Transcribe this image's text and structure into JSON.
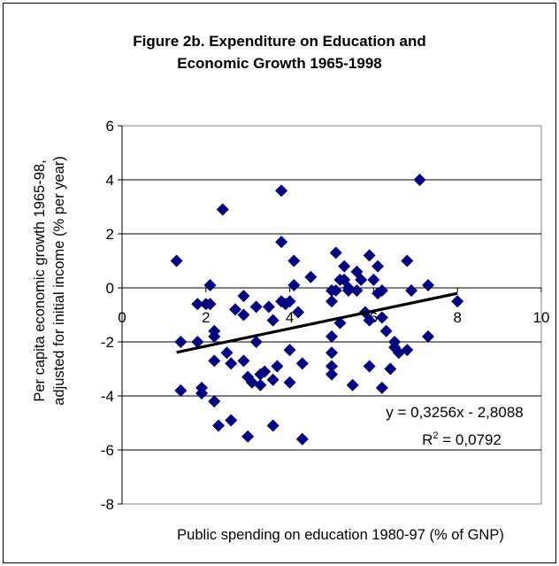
{
  "figure": {
    "title_line1": "Figure 2b. Expenditure on Education and",
    "title_line2": "Economic Growth 1965-1998"
  },
  "chart_data": {
    "type": "scatter",
    "xlabel": "Public spending on education 1980-97 (% of GNP)",
    "ylabel_line1": "Per capita economic growth 1965-98,",
    "ylabel_line2": "adjusted for initial income (% per year)",
    "xlim": [
      0,
      10
    ],
    "ylim": [
      -8,
      6
    ],
    "xticks": [
      0,
      2,
      4,
      6,
      8,
      10
    ],
    "yticks": [
      6,
      4,
      2,
      0,
      -2,
      -4,
      -6,
      -8
    ],
    "grid": "horizontal",
    "marker_color": "#000080",
    "trendline": {
      "x_range": [
        1.3,
        8.0
      ],
      "slope": 0.3256,
      "intercept": -2.8088,
      "equation": "y = 0,3256x - 2,8088",
      "r2_prefix": "R",
      "r2_sup": "2",
      "r2_value": " = 0,0792"
    },
    "points": [
      [
        1.3,
        1.0
      ],
      [
        1.4,
        -2.0
      ],
      [
        1.4,
        -3.8
      ],
      [
        1.8,
        -0.6
      ],
      [
        1.8,
        -2.0
      ],
      [
        1.9,
        -3.7
      ],
      [
        1.9,
        -3.9
      ],
      [
        2.0,
        -0.6
      ],
      [
        2.1,
        -0.6
      ],
      [
        2.1,
        0.1
      ],
      [
        2.2,
        -1.6
      ],
      [
        2.2,
        -1.8
      ],
      [
        2.2,
        -2.7
      ],
      [
        2.2,
        -4.2
      ],
      [
        2.3,
        -5.1
      ],
      [
        2.4,
        2.9
      ],
      [
        2.5,
        -2.4
      ],
      [
        2.6,
        -2.8
      ],
      [
        2.6,
        -4.9
      ],
      [
        2.7,
        -0.8
      ],
      [
        2.9,
        -0.3
      ],
      [
        2.9,
        -1.0
      ],
      [
        2.9,
        -2.7
      ],
      [
        3.0,
        -3.3
      ],
      [
        3.0,
        -5.5
      ],
      [
        3.1,
        -3.5
      ],
      [
        3.2,
        -0.7
      ],
      [
        3.2,
        -2.0
      ],
      [
        3.3,
        -3.2
      ],
      [
        3.3,
        -3.6
      ],
      [
        3.4,
        -3.1
      ],
      [
        3.5,
        -0.7
      ],
      [
        3.6,
        -1.2
      ],
      [
        3.6,
        -3.4
      ],
      [
        3.6,
        -5.1
      ],
      [
        3.7,
        -2.9
      ],
      [
        3.8,
        3.6
      ],
      [
        3.8,
        1.7
      ],
      [
        3.8,
        -0.5
      ],
      [
        3.9,
        -0.6
      ],
      [
        4.0,
        -0.5
      ],
      [
        4.0,
        -2.3
      ],
      [
        4.0,
        -3.5
      ],
      [
        4.1,
        1.0
      ],
      [
        4.1,
        0.1
      ],
      [
        4.2,
        -0.9
      ],
      [
        4.3,
        -2.8
      ],
      [
        4.3,
        -5.6
      ],
      [
        4.5,
        0.4
      ],
      [
        5.0,
        -0.1
      ],
      [
        5.0,
        -0.5
      ],
      [
        5.0,
        -1.8
      ],
      [
        5.0,
        -2.4
      ],
      [
        5.0,
        -2.9
      ],
      [
        5.0,
        -3.2
      ],
      [
        5.1,
        1.3
      ],
      [
        5.1,
        -0.1
      ],
      [
        5.2,
        0.3
      ],
      [
        5.2,
        -1.3
      ],
      [
        5.3,
        0.8
      ],
      [
        5.3,
        0.3
      ],
      [
        5.4,
        0.0
      ],
      [
        5.4,
        -0.1
      ],
      [
        5.5,
        -3.6
      ],
      [
        5.6,
        0.6
      ],
      [
        5.6,
        -0.1
      ],
      [
        5.7,
        0.3
      ],
      [
        5.8,
        -0.9
      ],
      [
        5.9,
        1.2
      ],
      [
        5.9,
        -1.2
      ],
      [
        5.9,
        -2.9
      ],
      [
        6.0,
        0.3
      ],
      [
        6.1,
        0.8
      ],
      [
        6.1,
        -0.2
      ],
      [
        6.2,
        -0.1
      ],
      [
        6.2,
        -1.1
      ],
      [
        6.2,
        -3.7
      ],
      [
        6.3,
        -1.6
      ],
      [
        6.4,
        -3.0
      ],
      [
        6.5,
        -2.0
      ],
      [
        6.5,
        -2.2
      ],
      [
        6.6,
        -2.4
      ],
      [
        6.8,
        1.0
      ],
      [
        6.8,
        -2.3
      ],
      [
        6.9,
        -0.1
      ],
      [
        7.1,
        4.0
      ],
      [
        7.3,
        0.1
      ],
      [
        7.3,
        -1.8
      ],
      [
        8.0,
        -0.5
      ]
    ]
  }
}
